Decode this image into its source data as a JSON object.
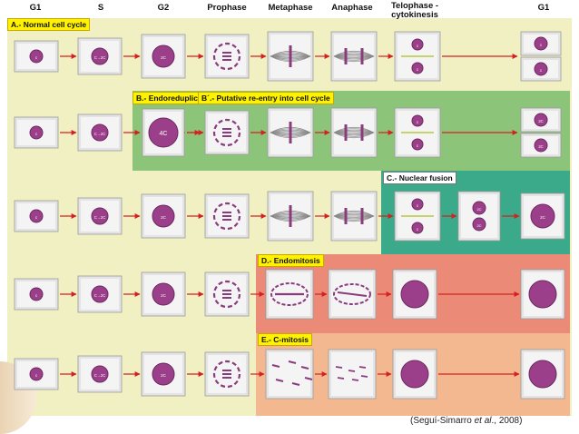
{
  "columns": {
    "g1": "G1",
    "s": "S",
    "g2": "G2",
    "prophase": "Prophase",
    "metaphase": "Metaphase",
    "anaphase": "Anaphase",
    "telophase_line1": "Telophase -",
    "telophase_line2": "cytokinesis",
    "g1_end": "G1"
  },
  "rows": {
    "a": "A.- Normal cell cycle",
    "b": "B.- Endoreduplication",
    "b_prime": "B´.- Putative re-entry into cell cycle",
    "c": "C.- Nuclear fusion",
    "d": "D.- Endomitosis",
    "e": "E.- C-mitosis"
  },
  "cell_labels": {
    "c": "c",
    "c_to_2c": "C→2C",
    "two_c": "2C",
    "four_c": "4C"
  },
  "citation": {
    "prefix": "(Seguí-Simarro ",
    "etal": "et al",
    "suffix": "., 2008)"
  },
  "colors": {
    "background_panel": "#f0efc0",
    "endoreduplication": "#8cc57a",
    "nuclear_fusion": "#3aaa8a",
    "endomitosis": "#ec8a78",
    "c_mitosis": "#f4b890",
    "nucleus": "#9c3f8a",
    "arrow": "#d42020",
    "tag_yellow": "#fff200"
  }
}
